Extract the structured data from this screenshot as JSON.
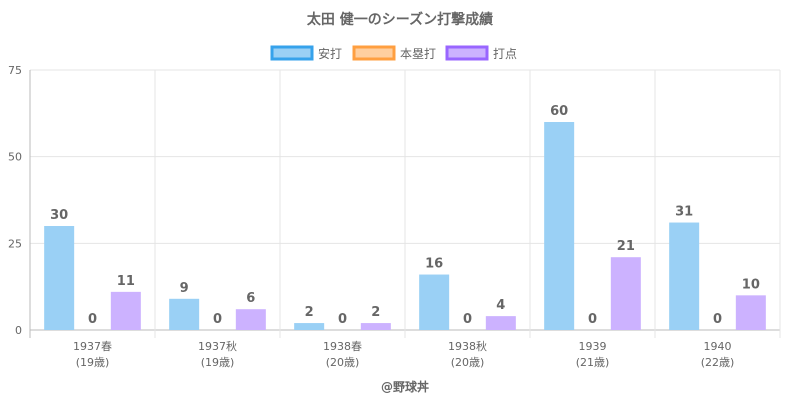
{
  "chart_data": {
    "type": "bar",
    "title": "太田 健一のシーズン打撃成績",
    "categories": [
      [
        "1937春",
        "(19歳)"
      ],
      [
        "1937秋",
        "(19歳)"
      ],
      [
        "1938春",
        "(20歳)"
      ],
      [
        "1938秋",
        "(20歳)"
      ],
      [
        "1939",
        "(21歳)"
      ],
      [
        "1940",
        "(22歳)"
      ]
    ],
    "series": [
      {
        "name": "安打",
        "values": [
          30,
          9,
          2,
          16,
          60,
          31
        ],
        "color": "#9ad0f5",
        "border": "#36a2eb"
      },
      {
        "name": "本塁打",
        "values": [
          0,
          0,
          0,
          0,
          0,
          0
        ],
        "color": "#ffcf9f",
        "border": "#ff9f40"
      },
      {
        "name": "打点",
        "values": [
          11,
          6,
          2,
          4,
          21,
          10
        ],
        "color": "#ccb2ff",
        "border": "#9966ff"
      }
    ],
    "ylim": [
      0,
      75
    ],
    "yticks": [
      0,
      25,
      50,
      75
    ],
    "grid": true,
    "legend_position": "top",
    "credit": "@野球丼"
  }
}
